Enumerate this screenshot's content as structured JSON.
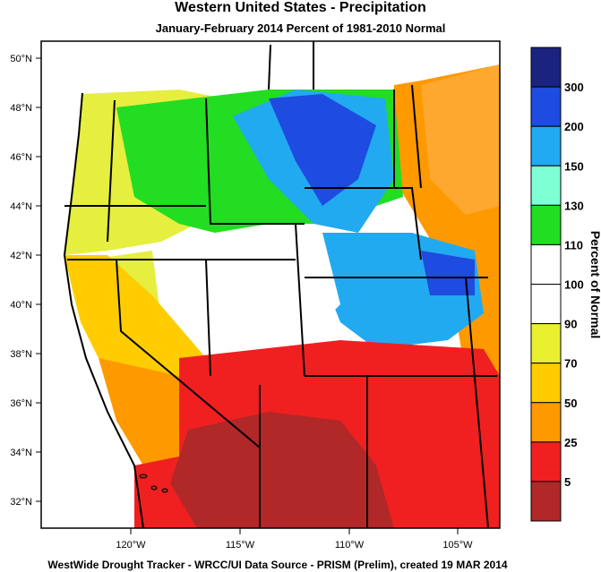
{
  "title": "Western United States - Precipitation",
  "subtitle": "January-February 2014  Percent of 1981-2010 Normal",
  "footer": "WestWide Drought Tracker - WRCC/UI  Data Source - PRISM (Prelim), created 19 MAR 2014",
  "latitude_labels": [
    "50°N",
    "48°N",
    "46°N",
    "44°N",
    "42°N",
    "40°N",
    "38°N",
    "36°N",
    "34°N",
    "32°N"
  ],
  "longitude_labels": [
    "120°W",
    "115°W",
    "110°W",
    "105°W"
  ],
  "colorbar": {
    "title": "Percent of Normal",
    "labels": [
      "300",
      "200",
      "150",
      "130",
      "110",
      "100",
      "90",
      "70",
      "50",
      "25",
      "5"
    ],
    "colors": [
      "#1a237e",
      "#1e4be0",
      "#22aaf0",
      "#7fffd4",
      "#22dd22",
      "#ffffff",
      "#ffffff",
      "#e8f030",
      "#ffcc00",
      "#ff9900",
      "#f02020",
      "#b02828"
    ]
  },
  "region_colors": {
    "ocean": "#ffffff",
    "canada": "#ffffff",
    "pacific_nw": "#e6ee40",
    "northern_rockies": "#22dd22",
    "montana_core": "#1e4be0",
    "wyoming_colorado": "#22aaf0",
    "great_basin": "#ffffff",
    "california_north": "#ffcc00",
    "california_south": "#ff9900",
    "southwest": "#f02020",
    "arizona_core": "#b02828",
    "eastern_plains": "#ff9900"
  }
}
